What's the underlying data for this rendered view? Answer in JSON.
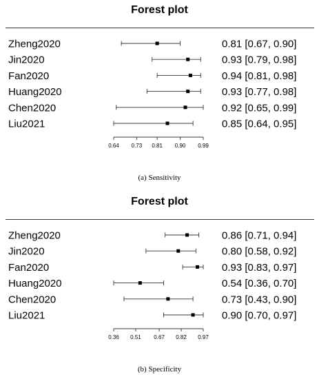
{
  "panels": [
    {
      "title": "Forest plot",
      "caption_letter": "(a)",
      "caption_text": "Sensitivity",
      "chart_data": {
        "type": "scatter",
        "title": "Forest plot",
        "xlabel": "",
        "ylabel": "",
        "xlim": [
          0.64,
          0.99
        ],
        "xticks": [
          0.64,
          0.73,
          0.81,
          0.9,
          0.99
        ],
        "xtick_labels": [
          "0.64",
          "0.73",
          "0.81",
          "0.90",
          "0.99"
        ],
        "studies": [
          {
            "name": "Zheng2020",
            "estimate": 0.81,
            "lower": 0.67,
            "upper": 0.9,
            "label": "0.81 [0.67, 0.90]"
          },
          {
            "name": "Jin2020",
            "estimate": 0.93,
            "lower": 0.79,
            "upper": 0.98,
            "label": "0.93 [0.79, 0.98]"
          },
          {
            "name": "Fan2020",
            "estimate": 0.94,
            "lower": 0.81,
            "upper": 0.98,
            "label": "0.94 [0.81, 0.98]"
          },
          {
            "name": "Huang2020",
            "estimate": 0.93,
            "lower": 0.77,
            "upper": 0.98,
            "label": "0.93 [0.77, 0.98]"
          },
          {
            "name": "Chen2020",
            "estimate": 0.92,
            "lower": 0.65,
            "upper": 0.99,
            "label": "0.92 [0.65, 0.99]"
          },
          {
            "name": "Liu2021",
            "estimate": 0.85,
            "lower": 0.64,
            "upper": 0.95,
            "label": "0.85 [0.64, 0.95]"
          }
        ]
      }
    },
    {
      "title": "Forest plot",
      "caption_letter": "(b)",
      "caption_text": "Specificity",
      "chart_data": {
        "type": "scatter",
        "title": "Forest plot",
        "xlabel": "",
        "ylabel": "",
        "xlim": [
          0.36,
          0.97
        ],
        "xticks": [
          0.36,
          0.51,
          0.67,
          0.82,
          0.97
        ],
        "xtick_labels": [
          "0.36",
          "0.51",
          "0.67",
          "0.82",
          "0.97"
        ],
        "studies": [
          {
            "name": "Zheng2020",
            "estimate": 0.86,
            "lower": 0.71,
            "upper": 0.94,
            "label": "0.86 [0.71, 0.94]"
          },
          {
            "name": "Jin2020",
            "estimate": 0.8,
            "lower": 0.58,
            "upper": 0.92,
            "label": "0.80 [0.58, 0.92]"
          },
          {
            "name": "Fan2020",
            "estimate": 0.93,
            "lower": 0.83,
            "upper": 0.97,
            "label": "0.93 [0.83, 0.97]"
          },
          {
            "name": "Huang2020",
            "estimate": 0.54,
            "lower": 0.36,
            "upper": 0.7,
            "label": "0.54 [0.36, 0.70]"
          },
          {
            "name": "Chen2020",
            "estimate": 0.73,
            "lower": 0.43,
            "upper": 0.9,
            "label": "0.73 [0.43, 0.90]"
          },
          {
            "name": "Liu2021",
            "estimate": 0.9,
            "lower": 0.7,
            "upper": 0.97,
            "label": "0.90 [0.70, 0.97]"
          }
        ]
      }
    }
  ]
}
